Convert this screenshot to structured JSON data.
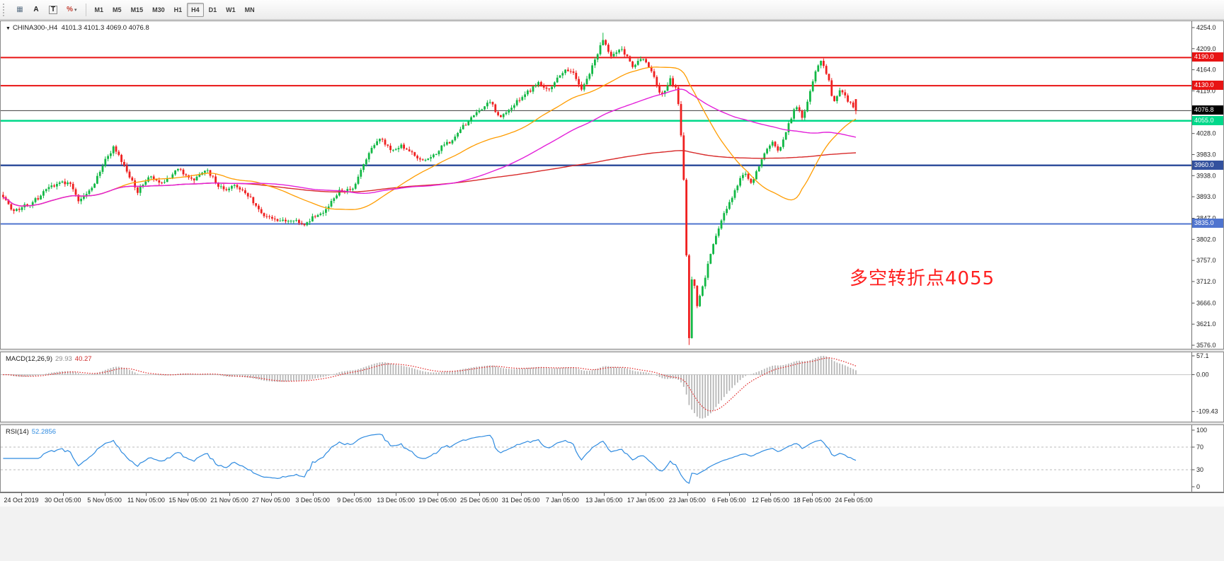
{
  "toolbar": {
    "icons": [
      {
        "name": "grid-icon",
        "glyph": "▦",
        "color": "#5f7488",
        "boxed": false,
        "caret": false
      },
      {
        "name": "text-label-icon",
        "glyph": "A",
        "color": "#1d1d1d",
        "boxed": false,
        "caret": false
      },
      {
        "name": "text-tool-icon",
        "glyph": "T",
        "color": "#1d1d1d",
        "boxed": true,
        "caret": false
      },
      {
        "name": "percent-tool-icon",
        "glyph": "%",
        "color": "#c23b2e",
        "boxed": false,
        "caret": true
      }
    ],
    "timeframes": [
      "M1",
      "M5",
      "M15",
      "M30",
      "H1",
      "H4",
      "D1",
      "W1",
      "MN"
    ],
    "active_timeframe": "H4"
  },
  "chart_data": {
    "type": "candlestick",
    "symbol": "CHINA300-",
    "timeframe": "H4",
    "header": {
      "marker": "▼",
      "symbol": "CHINA300-,H4",
      "ohlc": "4101.3 4101.3 4069.0 4076.8",
      "ohlc_values": [
        4101.3,
        4101.3,
        4069.0,
        4076.8
      ]
    },
    "price_range": {
      "top": 4254.0,
      "bottom": 3576.0
    },
    "y_ticks": [
      "4254.0",
      "4209.0",
      "4164.0",
      "4119.0",
      "4074.0",
      "4028.0",
      "3983.0",
      "3938.0",
      "3893.0",
      "3847.0",
      "3802.0",
      "3757.0",
      "3712.0",
      "3666.0",
      "3621.0",
      "3576.0"
    ],
    "x_labels": [
      "24 Oct 2019",
      "30 Oct 05:00",
      "5 Nov 05:00",
      "11 Nov 05:00",
      "15 Nov 05:00",
      "21 Nov 05:00",
      "27 Nov 05:00",
      "3 Dec 05:00",
      "9 Dec 05:00",
      "13 Dec 05:00",
      "19 Dec 05:00",
      "25 Dec 05:00",
      "31 Dec 05:00",
      "7 Jan 05:00",
      "13 Jan 05:00",
      "17 Jan 05:00",
      "23 Jan 05:00",
      "6 Feb 05:00",
      "12 Feb 05:00",
      "18 Feb 05:00",
      "24 Feb 05:00"
    ],
    "h_lines": [
      {
        "value": 4190.0,
        "label": "4190.0",
        "color": "#e81414",
        "width": 2
      },
      {
        "value": 4130.0,
        "label": "4130.0",
        "color": "#e81414",
        "width": 2
      },
      {
        "value": 4055.0,
        "label": "4055.0",
        "color": "#00d88a",
        "width": 2.5
      },
      {
        "value": 3960.0,
        "label": "3960.0",
        "color": "#33519e",
        "width": 2.5
      },
      {
        "value": 3835.0,
        "label": "3835.0",
        "color": "#4f74cf",
        "width": 2
      }
    ],
    "current_price": {
      "value": 4076.8,
      "label": "4076.8",
      "line_color": "#3c3c3c",
      "chip_color": "#000000"
    },
    "annotation": {
      "text": "多空转折点4055",
      "color": "#ff1f1f"
    },
    "candle_colors": {
      "up": "#12b845",
      "down": "#ef2020"
    },
    "candles": {
      "count": 318,
      "seed": 7,
      "waypoints": [
        [
          0,
          3898
        ],
        [
          0.01,
          3862
        ],
        [
          0.03,
          3876
        ],
        [
          0.055,
          3912
        ],
        [
          0.075,
          3928
        ],
        [
          0.09,
          3881
        ],
        [
          0.105,
          3918
        ],
        [
          0.12,
          3972
        ],
        [
          0.13,
          4001
        ],
        [
          0.142,
          3956
        ],
        [
          0.158,
          3903
        ],
        [
          0.172,
          3936
        ],
        [
          0.188,
          3918
        ],
        [
          0.205,
          3952
        ],
        [
          0.222,
          3929
        ],
        [
          0.238,
          3951
        ],
        [
          0.258,
          3905
        ],
        [
          0.272,
          3919
        ],
        [
          0.288,
          3894
        ],
        [
          0.305,
          3854
        ],
        [
          0.322,
          3839
        ],
        [
          0.338,
          3847
        ],
        [
          0.352,
          3831
        ],
        [
          0.365,
          3853
        ],
        [
          0.38,
          3866
        ],
        [
          0.395,
          3909
        ],
        [
          0.41,
          3904
        ],
        [
          0.42,
          3949
        ],
        [
          0.432,
          3996
        ],
        [
          0.443,
          4019
        ],
        [
          0.455,
          3993
        ],
        [
          0.468,
          4003
        ],
        [
          0.482,
          3979
        ],
        [
          0.495,
          3966
        ],
        [
          0.512,
          3993
        ],
        [
          0.528,
          4016
        ],
        [
          0.545,
          4053
        ],
        [
          0.56,
          4079
        ],
        [
          0.572,
          4096
        ],
        [
          0.582,
          4063
        ],
        [
          0.597,
          4083
        ],
        [
          0.612,
          4113
        ],
        [
          0.628,
          4136
        ],
        [
          0.642,
          4123
        ],
        [
          0.655,
          4161
        ],
        [
          0.668,
          4159
        ],
        [
          0.678,
          4121
        ],
        [
          0.69,
          4166
        ],
        [
          0.70347,
          4229
        ],
        [
          0.712,
          4196
        ],
        [
          0.725,
          4209
        ],
        [
          0.738,
          4169
        ],
        [
          0.75,
          4189
        ],
        [
          0.762,
          4156
        ],
        [
          0.772,
          4106
        ],
        [
          0.782,
          4141
        ],
        [
          0.79,
          4123
        ],
        [
          0.7955,
          4015
        ],
        [
          0.799,
          3900
        ],
        [
          0.80442,
          3592
        ],
        [
          0.8085,
          3752
        ],
        [
          0.813,
          3655
        ],
        [
          0.82,
          3701
        ],
        [
          0.832,
          3789
        ],
        [
          0.845,
          3856
        ],
        [
          0.858,
          3906
        ],
        [
          0.868,
          3943
        ],
        [
          0.878,
          3921
        ],
        [
          0.888,
          3969
        ],
        [
          0.9,
          4009
        ],
        [
          0.91,
          3991
        ],
        [
          0.92,
          4046
        ],
        [
          0.93,
          4089
        ],
        [
          0.938,
          4061
        ],
        [
          0.948,
          4131
        ],
        [
          0.958,
          4189
        ],
        [
          0.966,
          4156
        ],
        [
          0.974,
          4091
        ],
        [
          0.982,
          4126
        ],
        [
          0.99,
          4099
        ],
        [
          1,
          4077
        ]
      ]
    },
    "moving_averages": [
      {
        "name": "ma-slow",
        "period": 320,
        "color": "#d82a2a",
        "width": 1.4
      },
      {
        "name": "ma-fast",
        "period": 42,
        "color": "#ff9c00",
        "width": 1.3
      },
      {
        "name": "ma-medium",
        "period": 90,
        "color": "#e321d9",
        "width": 1.4
      }
    ],
    "indicators": {
      "macd": {
        "label": "MACD(12,26,9)",
        "value_main": "29.93",
        "value_signal": "40.27",
        "fast": 12,
        "slow": 26,
        "signal": 9,
        "axis_labels": [
          "57.1",
          "0.00",
          "-109.43"
        ],
        "histogram_color": "#b4b4b4",
        "signal_color": "#e02020",
        "zero_line_color": "#c6c6c6"
      },
      "rsi": {
        "label": "RSI(14)",
        "value": "52.2856",
        "period": 14,
        "color": "#2f8be0",
        "levels": [
          70,
          30
        ],
        "axis_labels": [
          "100",
          "70",
          "30",
          "0"
        ],
        "level_line_color": "#bbbbbb"
      }
    }
  }
}
